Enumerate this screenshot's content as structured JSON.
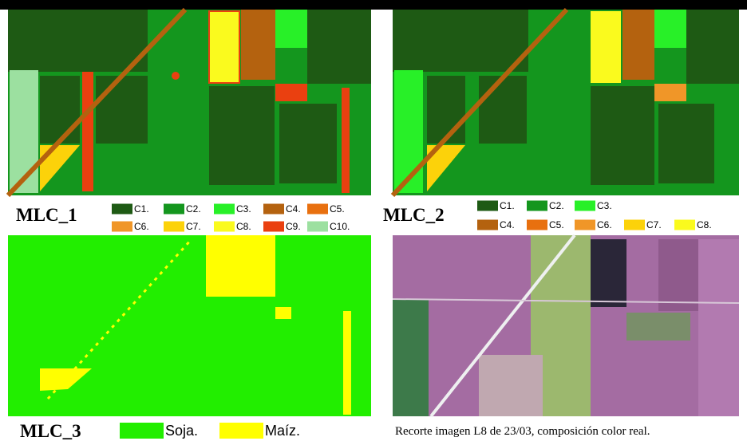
{
  "panels": [
    {
      "label": "MLC_1",
      "legend": [
        {
          "name": "C1.",
          "color": "#1e5a14"
        },
        {
          "name": "C2.",
          "color": "#14961e"
        },
        {
          "name": "C3.",
          "color": "#28f028"
        },
        {
          "name": "C4.",
          "color": "#b4620f"
        },
        {
          "name": "C5.",
          "color": "#e8700f"
        },
        {
          "name": "C6.",
          "color": "#f09628"
        },
        {
          "name": "C7.",
          "color": "#fcd20a"
        },
        {
          "name": "C8.",
          "color": "#fafa1e"
        },
        {
          "name": "C9.",
          "color": "#ea4010"
        },
        {
          "name": "C10.",
          "color": "#9ce0a0"
        }
      ]
    },
    {
      "label": "MLC_2",
      "legend": [
        {
          "name": "C1.",
          "color": "#1e5a14"
        },
        {
          "name": "C2.",
          "color": "#14961e"
        },
        {
          "name": "C3.",
          "color": "#28f028"
        },
        {
          "name": "C4.",
          "color": "#b4620f"
        },
        {
          "name": "C5.",
          "color": "#e8700f"
        },
        {
          "name": "C6.",
          "color": "#f09628"
        },
        {
          "name": "C7.",
          "color": "#fcd20a"
        },
        {
          "name": "C8.",
          "color": "#fafa1e"
        }
      ]
    },
    {
      "label": "MLC_3",
      "legend": [
        {
          "name": "Soja.",
          "color": "#22ee00"
        },
        {
          "name": "Maíz.",
          "color": "#ffff00"
        }
      ]
    }
  ],
  "caption": "Recorte imagen L8 de 23/03, composición color real."
}
